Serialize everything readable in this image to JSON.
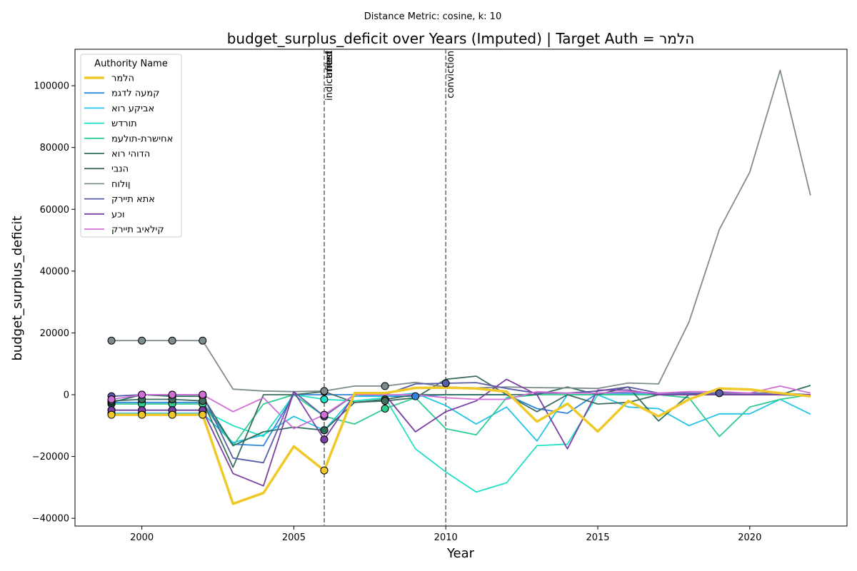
{
  "suptitle": "Distance Metric: cosine, k: 10",
  "chart_data": {
    "type": "line",
    "title": "budget_surplus_deficit over Years (Imputed) | Target Auth = הלמר",
    "xlabel": "Year",
    "ylabel": "budget_surplus_deficit",
    "xlim": [
      1997.8,
      2023.2
    ],
    "ylim": [
      -42500,
      111800
    ],
    "xticks": [
      2000,
      2005,
      2010,
      2015,
      2020
    ],
    "xtick_labels": [
      "2000",
      "2005",
      "2010",
      "2015",
      "2020"
    ],
    "yticks": [
      -40000,
      -20000,
      0,
      20000,
      40000,
      60000,
      80000,
      100000
    ],
    "ytick_labels": [
      "−40000",
      "−20000",
      "0",
      "20000",
      "40000",
      "60000",
      "80000",
      "100000"
    ],
    "grid": false,
    "legend": {
      "title": "Authority Name",
      "placement": "top-left"
    },
    "events": [
      {
        "x": 2006,
        "labels": [
          "indictment",
          "filed",
          "arrest"
        ]
      },
      {
        "x": 2010,
        "labels": [
          "conviction"
        ]
      }
    ],
    "x": [
      1999,
      2000,
      2001,
      2002,
      2003,
      2004,
      2005,
      2006,
      2007,
      2008,
      2009,
      2010,
      2011,
      2012,
      2013,
      2014,
      2015,
      2016,
      2017,
      2018,
      2019,
      2020,
      2021,
      2022
    ],
    "series": [
      {
        "name": "הלמר",
        "color": "#f0c929",
        "target": true,
        "values": [
          -6500,
          -6500,
          -6500,
          -6500,
          -35300,
          -31800,
          -16700,
          -24500,
          500,
          500,
          2200,
          2300,
          2000,
          1000,
          -8700,
          -2900,
          -11900,
          -2000,
          -7000,
          -1500,
          2000,
          1700,
          500,
          -500
        ],
        "imputed": [
          0,
          1,
          2,
          3,
          7
        ]
      },
      {
        "name": "קמעה לדגמ",
        "color": "#2e86de",
        "values": [
          -2500,
          -2500,
          -2500,
          -2500,
          -16000,
          -16500,
          0,
          0,
          0,
          -500,
          -500,
          0,
          0,
          0,
          -4500,
          -6000,
          500,
          500,
          500,
          500,
          0,
          0,
          0,
          -500
        ],
        "imputed": [
          0,
          1,
          2,
          3,
          10
        ]
      },
      {
        "name": "אביקע רוא",
        "color": "#22c3e6",
        "values": [
          -6000,
          -6000,
          -6000,
          -6000,
          -15500,
          -13000,
          -7000,
          -11500,
          -500,
          -500,
          500,
          -3500,
          -9500,
          -4000,
          -15000,
          0,
          0,
          -4000,
          -4500,
          -10000,
          -6200,
          -6200,
          -1500,
          -6300
        ],
        "imputed": [
          0,
          1,
          2,
          3,
          7
        ]
      },
      {
        "name": "תורדש",
        "color": "#1ee0c4",
        "values": [
          -5000,
          -5000,
          -5000,
          -5000,
          -10000,
          -13500,
          0,
          -1500,
          -2000,
          -1000,
          -17500,
          -25000,
          -31500,
          -28500,
          -16500,
          -16000,
          0,
          0,
          0,
          0,
          0,
          0,
          0,
          0
        ],
        "imputed": [
          0,
          1,
          2,
          3,
          7
        ]
      },
      {
        "name": "אחישרת-תולעמ",
        "color": "#2ecc8e",
        "values": [
          -3000,
          -3000,
          -3000,
          -3000,
          -16500,
          -3000,
          0,
          -7000,
          -9500,
          -4500,
          -1000,
          -11000,
          -13000,
          -1000,
          0,
          0,
          0,
          0,
          0,
          -1000,
          -13500,
          -4000,
          -1500,
          0
        ],
        "imputed": [
          0,
          1,
          2,
          3,
          7,
          9
        ]
      },
      {
        "name": "הדוהי רוא",
        "color": "#2f6f5e",
        "values": [
          -2500,
          0,
          -500,
          -500,
          -16500,
          -12000,
          -10500,
          -11500,
          -2500,
          -1500,
          0,
          0,
          0,
          0,
          0,
          2500,
          0,
          2500,
          -8500,
          0,
          0,
          0,
          0,
          3000
        ],
        "imputed": [
          0,
          1,
          2,
          3,
          7,
          9
        ]
      },
      {
        "name": "הנבי",
        "color": "#3e6d60",
        "values": [
          -2000,
          -1500,
          -1500,
          -2000,
          -23500,
          0,
          0,
          1000,
          -2500,
          -2000,
          -1000,
          5000,
          6000,
          0,
          -5500,
          0,
          -3000,
          -2500,
          0,
          0,
          0,
          0,
          0,
          0
        ],
        "imputed": [
          0,
          1,
          2,
          3,
          7,
          9
        ]
      },
      {
        "name": "ןולוח",
        "color": "#7f8c8d",
        "values": [
          17500,
          17500,
          17500,
          17500,
          1800,
          1200,
          1000,
          1200,
          2800,
          2800,
          4000,
          2500,
          2200,
          2500,
          2300,
          2200,
          2000,
          3800,
          3500,
          23500,
          53500,
          72000,
          105000,
          64500
        ],
        "imputed": [
          0,
          1,
          2,
          3,
          7,
          9
        ]
      },
      {
        "name": "אתא תיירק",
        "color": "#5b5ea6",
        "values": [
          -500,
          0,
          0,
          0,
          -20500,
          -22000,
          1000,
          -7000,
          0,
          0,
          3500,
          3700,
          3900,
          2000,
          500,
          500,
          1200,
          2500,
          500,
          500,
          500,
          500,
          500,
          0
        ],
        "imputed": [
          0,
          1,
          2,
          3,
          7,
          11,
          20
        ]
      },
      {
        "name": "וכע",
        "color": "#7d3fa6",
        "values": [
          -5000,
          -5000,
          -5000,
          -5000,
          -25500,
          -29500,
          1000,
          -14500,
          0,
          0,
          -12000,
          -5500,
          -2000,
          5000,
          0,
          -17500,
          1500,
          1500,
          0,
          0,
          0,
          0,
          0,
          0
        ],
        "imputed": [
          0,
          1,
          2,
          3,
          7
        ]
      },
      {
        "name": "קילאיב תיירק",
        "color": "#cf6fd6",
        "values": [
          -1500,
          0,
          0,
          0,
          -5500,
          -1000,
          -11000,
          -6500,
          0,
          0,
          0,
          -1000,
          -1500,
          -1500,
          1000,
          500,
          500,
          1000,
          500,
          1000,
          1000,
          500,
          2800,
          500
        ],
        "imputed": [
          0,
          1,
          2,
          3,
          7
        ]
      }
    ]
  }
}
